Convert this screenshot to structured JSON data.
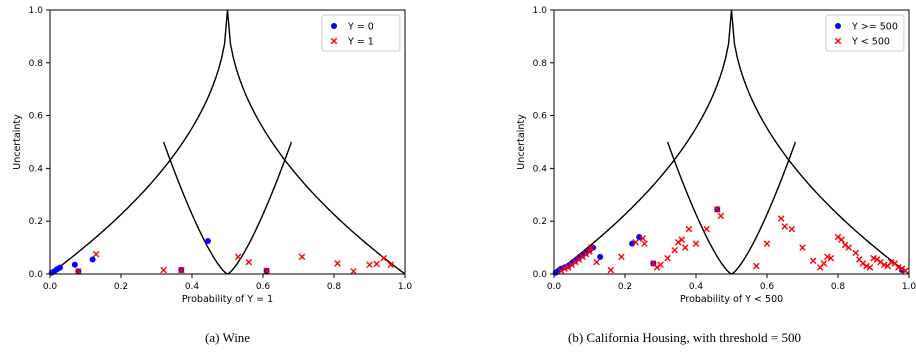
{
  "captions": {
    "left": "(a) Wine",
    "right": "(b) California Housing, with threshold = 500"
  },
  "colors": {
    "class_a": "#0000ff",
    "class_b": "#ff0000",
    "curve": "#000000"
  },
  "chart_data": [
    {
      "type": "scatter",
      "title": "",
      "xlabel": "Probability of Y = 1",
      "ylabel": "Uncertainty",
      "xlim": [
        0,
        1
      ],
      "ylim": [
        0,
        1
      ],
      "xticks": [
        "0.0",
        "0.2",
        "0.4",
        "0.6",
        "0.8",
        "1.0"
      ],
      "yticks": [
        "0.0",
        "0.2",
        "0.4",
        "0.6",
        "0.8",
        "1.0"
      ],
      "grid": false,
      "legend": "top-right",
      "boundary_curves": true,
      "series": [
        {
          "name": "Y = 0",
          "marker": "circle",
          "color": "#0000ff",
          "points": [
            [
              0.005,
              0.005
            ],
            [
              0.012,
              0.01
            ],
            [
              0.02,
              0.018
            ],
            [
              0.028,
              0.024
            ],
            [
              0.07,
              0.035
            ],
            [
              0.12,
              0.055
            ],
            [
              0.08,
              0.01
            ],
            [
              0.37,
              0.015
            ],
            [
              0.445,
              0.125
            ],
            [
              0.61,
              0.012
            ]
          ]
        },
        {
          "name": "Y = 1",
          "marker": "x",
          "color": "#ff0000",
          "points": [
            [
              0.08,
              0.01
            ],
            [
              0.13,
              0.075
            ],
            [
              0.32,
              0.015
            ],
            [
              0.37,
              0.015
            ],
            [
              0.53,
              0.065
            ],
            [
              0.56,
              0.045
            ],
            [
              0.61,
              0.012
            ],
            [
              0.71,
              0.065
            ],
            [
              0.81,
              0.04
            ],
            [
              0.855,
              0.01
            ],
            [
              0.9,
              0.035
            ],
            [
              0.92,
              0.038
            ],
            [
              0.94,
              0.06
            ],
            [
              0.96,
              0.035
            ]
          ]
        }
      ]
    },
    {
      "type": "scatter",
      "title": "",
      "xlabel": "Probability of Y < 500",
      "ylabel": "Uncertainty",
      "xlim": [
        0,
        1
      ],
      "ylim": [
        0,
        1
      ],
      "xticks": [
        "0.0",
        "0.2",
        "0.4",
        "0.6",
        "0.8",
        "1.0"
      ],
      "yticks": [
        "0.0",
        "0.2",
        "0.4",
        "0.6",
        "0.8",
        "1.0"
      ],
      "grid": false,
      "legend": "top-right",
      "boundary_curves": true,
      "series": [
        {
          "name": "Y >= 500",
          "marker": "circle",
          "color": "#0000ff",
          "points": [
            [
              0.005,
              0.005
            ],
            [
              0.01,
              0.01
            ],
            [
              0.015,
              0.015
            ],
            [
              0.02,
              0.02
            ],
            [
              0.03,
              0.025
            ],
            [
              0.04,
              0.03
            ],
            [
              0.05,
              0.04
            ],
            [
              0.06,
              0.05
            ],
            [
              0.07,
              0.06
            ],
            [
              0.08,
              0.07
            ],
            [
              0.09,
              0.08
            ],
            [
              0.1,
              0.09
            ],
            [
              0.11,
              0.1
            ],
            [
              0.13,
              0.065
            ],
            [
              0.22,
              0.115
            ],
            [
              0.24,
              0.14
            ],
            [
              0.28,
              0.04
            ],
            [
              0.46,
              0.245
            ],
            [
              0.98,
              0.015
            ]
          ]
        },
        {
          "name": "Y < 500",
          "marker": "x",
          "color": "#ff0000",
          "points": [
            [
              0.02,
              0.012
            ],
            [
              0.03,
              0.02
            ],
            [
              0.04,
              0.025
            ],
            [
              0.05,
              0.035
            ],
            [
              0.06,
              0.045
            ],
            [
              0.07,
              0.055
            ],
            [
              0.08,
              0.065
            ],
            [
              0.09,
              0.075
            ],
            [
              0.1,
              0.085
            ],
            [
              0.105,
              0.1
            ],
            [
              0.12,
              0.045
            ],
            [
              0.16,
              0.015
            ],
            [
              0.19,
              0.065
            ],
            [
              0.23,
              0.12
            ],
            [
              0.25,
              0.135
            ],
            [
              0.255,
              0.115
            ],
            [
              0.28,
              0.04
            ],
            [
              0.29,
              0.025
            ],
            [
              0.3,
              0.035
            ],
            [
              0.32,
              0.06
            ],
            [
              0.34,
              0.09
            ],
            [
              0.35,
              0.12
            ],
            [
              0.36,
              0.13
            ],
            [
              0.37,
              0.1
            ],
            [
              0.38,
              0.17
            ],
            [
              0.4,
              0.115
            ],
            [
              0.43,
              0.17
            ],
            [
              0.46,
              0.245
            ],
            [
              0.47,
              0.22
            ],
            [
              0.57,
              0.03
            ],
            [
              0.6,
              0.115
            ],
            [
              0.64,
              0.21
            ],
            [
              0.65,
              0.18
            ],
            [
              0.67,
              0.17
            ],
            [
              0.7,
              0.1
            ],
            [
              0.73,
              0.05
            ],
            [
              0.75,
              0.025
            ],
            [
              0.76,
              0.04
            ],
            [
              0.77,
              0.065
            ],
            [
              0.78,
              0.06
            ],
            [
              0.8,
              0.14
            ],
            [
              0.81,
              0.13
            ],
            [
              0.82,
              0.11
            ],
            [
              0.83,
              0.1
            ],
            [
              0.85,
              0.08
            ],
            [
              0.86,
              0.055
            ],
            [
              0.87,
              0.04
            ],
            [
              0.88,
              0.03
            ],
            [
              0.89,
              0.025
            ],
            [
              0.9,
              0.06
            ],
            [
              0.91,
              0.055
            ],
            [
              0.92,
              0.045
            ],
            [
              0.93,
              0.035
            ],
            [
              0.94,
              0.03
            ],
            [
              0.95,
              0.045
            ],
            [
              0.96,
              0.04
            ],
            [
              0.97,
              0.025
            ],
            [
              0.98,
              0.02
            ],
            [
              0.99,
              0.012
            ]
          ]
        }
      ]
    }
  ]
}
